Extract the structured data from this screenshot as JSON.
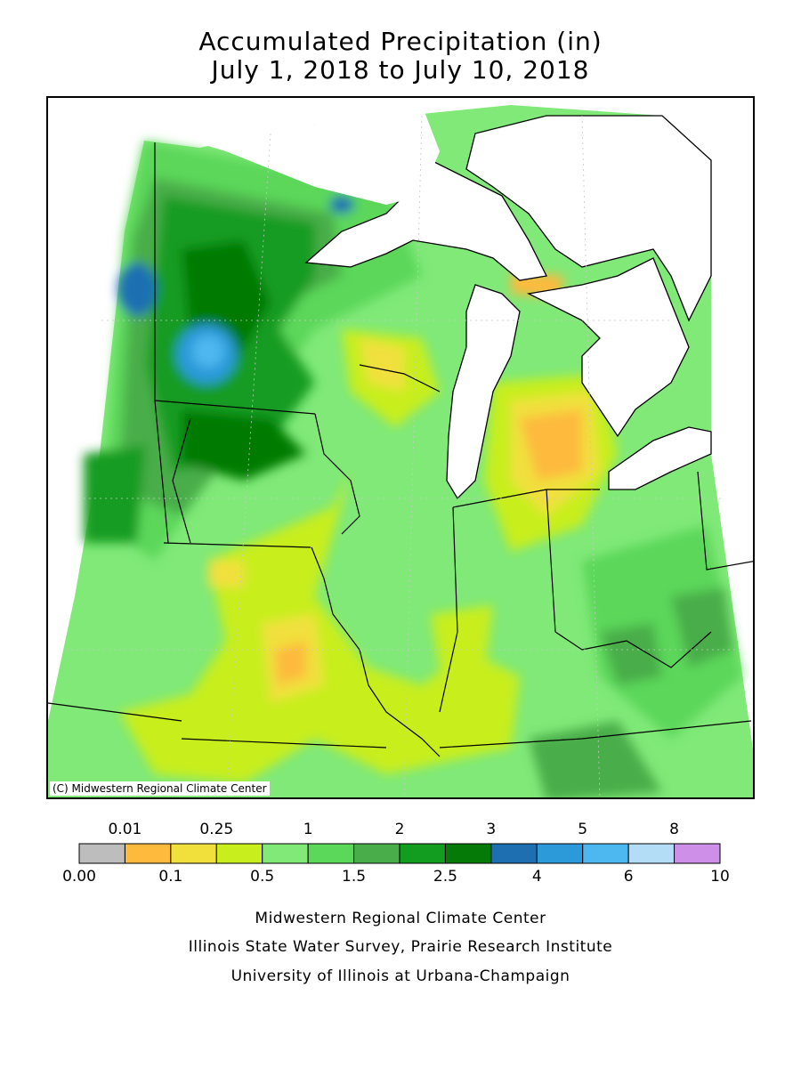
{
  "title": {
    "line1": "Accumulated Precipitation (in)",
    "line2": "July 1, 2018 to July 10, 2018"
  },
  "map": {
    "copyright": "(C) Midwestern Regional Climate Center"
  },
  "legend": {
    "bins": [
      {
        "color": "#bdbdbd"
      },
      {
        "color": "#fdba3c"
      },
      {
        "color": "#f1e03c"
      },
      {
        "color": "#c8ee1e"
      },
      {
        "color": "#80e978"
      },
      {
        "color": "#5bd75a"
      },
      {
        "color": "#49ad49"
      },
      {
        "color": "#129c20"
      },
      {
        "color": "#067a06"
      },
      {
        "color": "#1d6fb2"
      },
      {
        "color": "#2c9ad9"
      },
      {
        "color": "#4db7ef"
      },
      {
        "color": "#b3dcf7"
      },
      {
        "color": "#ce8fe9"
      }
    ],
    "top_labels": [
      {
        "text": "0.01",
        "boundary": 1
      },
      {
        "text": "0.25",
        "boundary": 3
      },
      {
        "text": "1",
        "boundary": 5
      },
      {
        "text": "2",
        "boundary": 7
      },
      {
        "text": "3",
        "boundary": 9
      },
      {
        "text": "5",
        "boundary": 11
      },
      {
        "text": "8",
        "boundary": 13
      }
    ],
    "bottom_labels": [
      {
        "text": "0.00",
        "boundary": 0
      },
      {
        "text": "0.1",
        "boundary": 2
      },
      {
        "text": "0.5",
        "boundary": 4
      },
      {
        "text": "1.5",
        "boundary": 6
      },
      {
        "text": "2.5",
        "boundary": 8
      },
      {
        "text": "4",
        "boundary": 10
      },
      {
        "text": "6",
        "boundary": 12
      },
      {
        "text": "10",
        "boundary": 14
      }
    ]
  },
  "footer": {
    "line1": "Midwestern Regional Climate Center",
    "line2": "Illinois State Water Survey, Prairie Research Institute",
    "line3": "University of Illinois at Urbana-Champaign"
  }
}
